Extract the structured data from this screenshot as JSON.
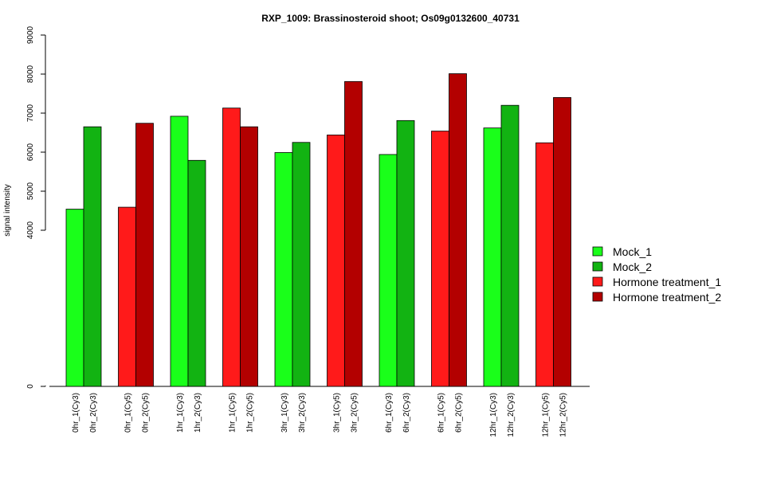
{
  "chart_data": {
    "type": "bar",
    "title": "RXP_1009: Brassinosteroid shoot; Os09g0132600_40731",
    "xlabel": "",
    "ylabel": "signal intensity",
    "y_ticks": [
      "0",
      "4000",
      "5000",
      "6000",
      "7000",
      "8000",
      "9000"
    ],
    "y_scale": "broken: 0 at bottom, then 4000-9000 linear",
    "grid": false,
    "legend_position": "right",
    "series": [
      {
        "name": "Mock_1",
        "color": "#1aff1a"
      },
      {
        "name": "Mock_2",
        "color": "#12b312"
      },
      {
        "name": "Hormone treatment_1",
        "color": "#ff1a1a"
      },
      {
        "name": "Hormone treatment_2",
        "color": "#b30000"
      }
    ],
    "bars": [
      {
        "label": "0hr_1(Cy3)",
        "value": 4540,
        "series": 0
      },
      {
        "label": "0hr_2(Cy3)",
        "value": 6650,
        "series": 1
      },
      {
        "label": "0hr_1(Cy5)",
        "value": 4590,
        "series": 2
      },
      {
        "label": "0hr_2(Cy5)",
        "value": 6740,
        "series": 3
      },
      {
        "label": "1hr_1(Cy3)",
        "value": 6920,
        "series": 0
      },
      {
        "label": "1hr_2(Cy3)",
        "value": 5790,
        "series": 1
      },
      {
        "label": "1hr_1(Cy5)",
        "value": 7130,
        "series": 2
      },
      {
        "label": "1hr_2(Cy5)",
        "value": 6650,
        "series": 3
      },
      {
        "label": "3hr_1(Cy3)",
        "value": 5990,
        "series": 0
      },
      {
        "label": "3hr_2(Cy3)",
        "value": 6250,
        "series": 1
      },
      {
        "label": "3hr_1(Cy5)",
        "value": 6440,
        "series": 2
      },
      {
        "label": "3hr_2(Cy5)",
        "value": 7810,
        "series": 3
      },
      {
        "label": "6hr_1(Cy3)",
        "value": 5940,
        "series": 0
      },
      {
        "label": "6hr_2(Cy3)",
        "value": 6810,
        "series": 1
      },
      {
        "label": "6hr_1(Cy5)",
        "value": 6540,
        "series": 2
      },
      {
        "label": "6hr_2(Cy5)",
        "value": 8010,
        "series": 3
      },
      {
        "label": "12hr_1(Cy3)",
        "value": 6620,
        "series": 0
      },
      {
        "label": "12hr_2(Cy3)",
        "value": 7200,
        "series": 1
      },
      {
        "label": "12hr_1(Cy5)",
        "value": 6240,
        "series": 2
      },
      {
        "label": "12hr_2(Cy5)",
        "value": 7400,
        "series": 3
      }
    ]
  }
}
